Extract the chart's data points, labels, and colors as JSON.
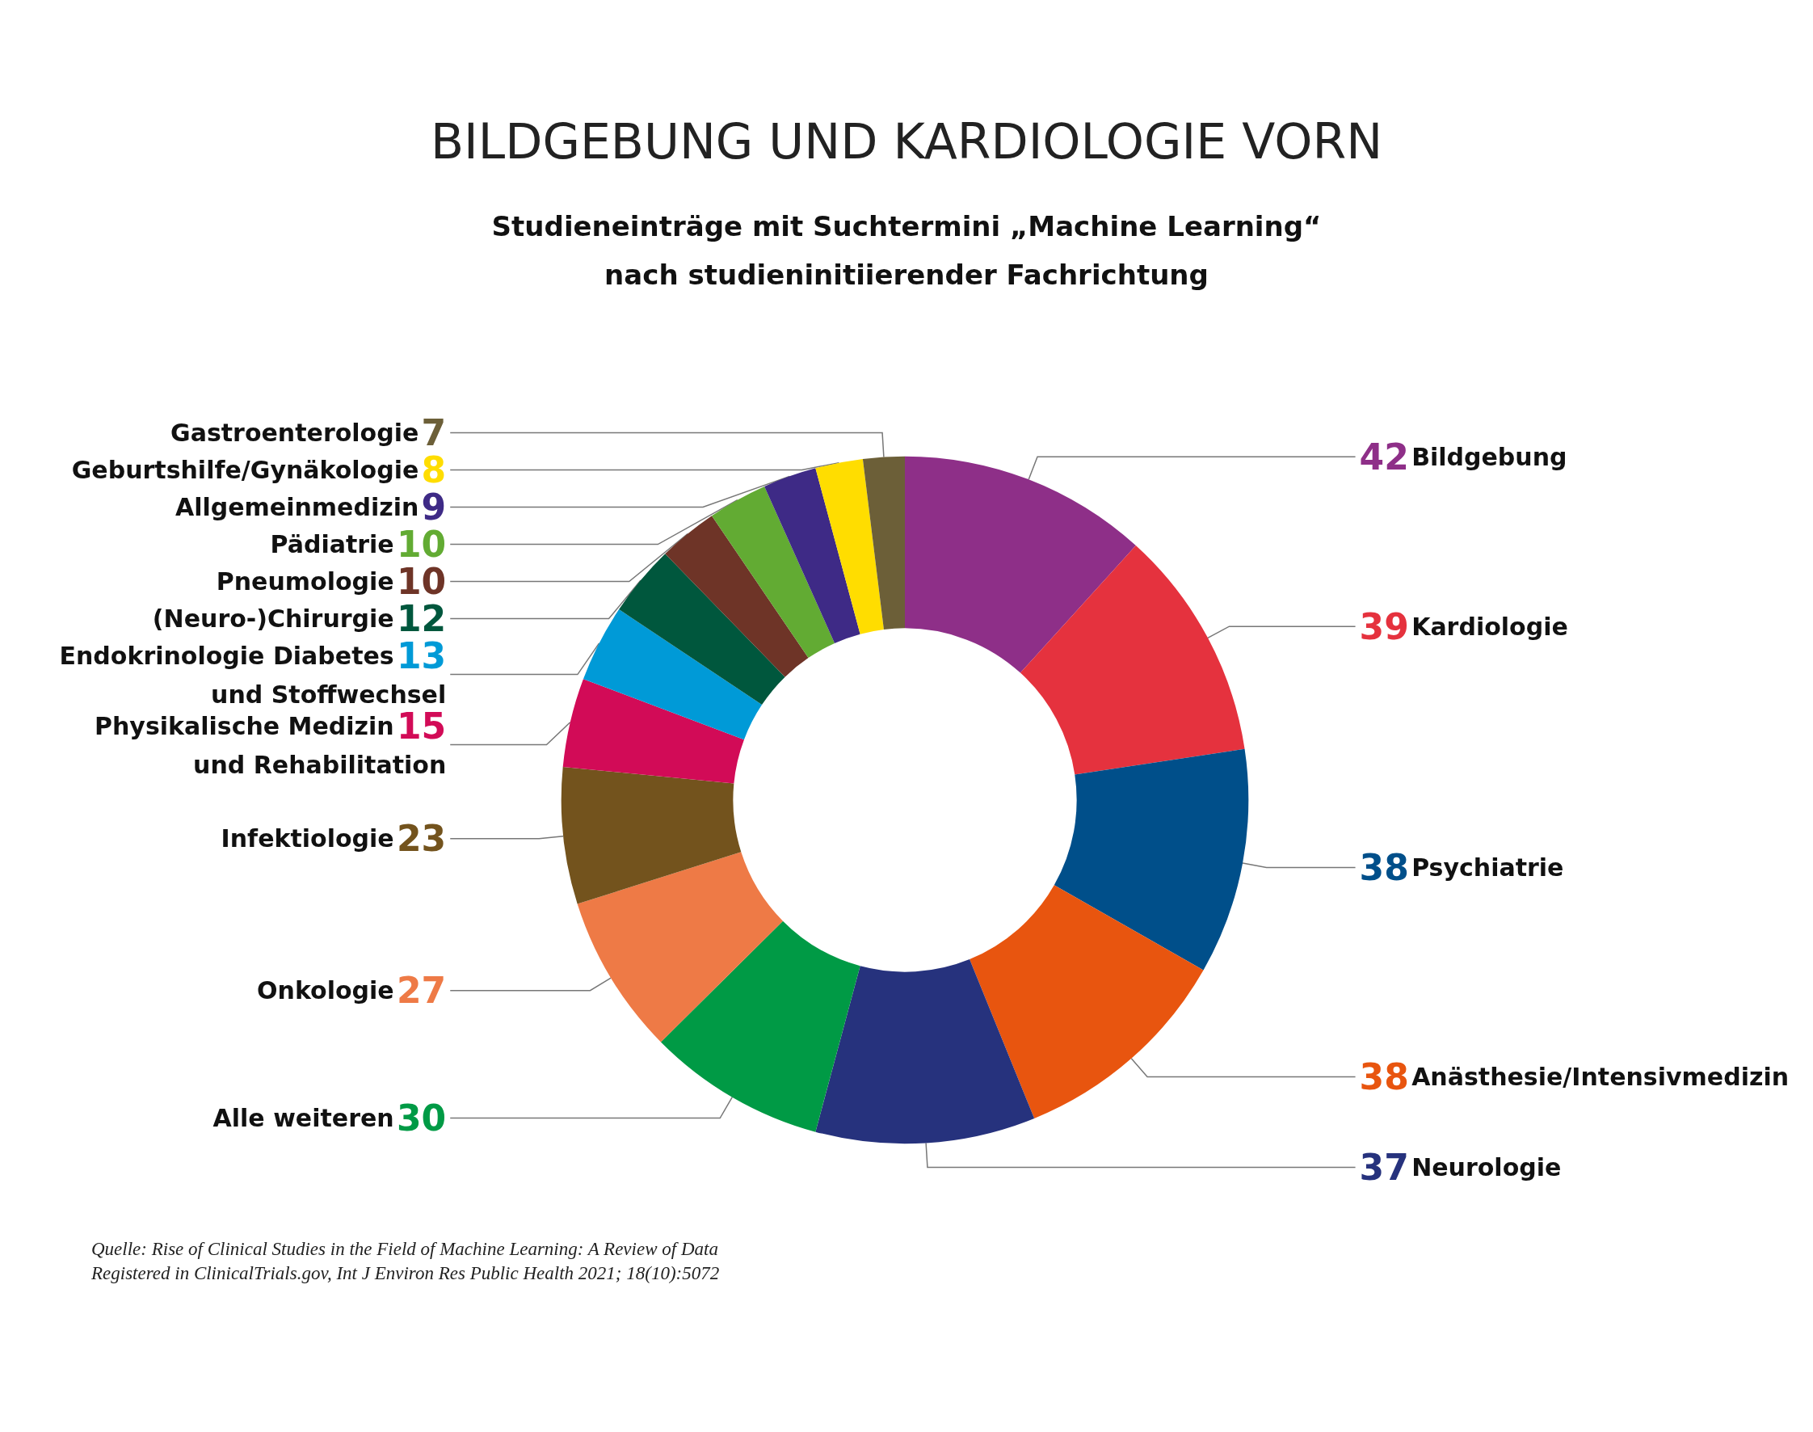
{
  "chart_data": {
    "type": "donut",
    "title": "BILDGEBUNG UND KARDIOLOGIE VORN",
    "subtitle": "Studieneinträge mit Suchtermini „Machine Learning“ nach studieninitiierender Fachrichtung",
    "categories": [
      "Bildgebung",
      "Kardiologie",
      "Psychiatrie",
      "Anästhesie/Intensivmedizin",
      "Neurologie",
      "Alle weiteren",
      "Onkologie",
      "Infektiologie",
      "Physikalische Medizin und Rehabilitation",
      "Endokrinologie Diabetes und Stoffwechsel",
      "(Neuro-)Chirurgie",
      "Pneumologie",
      "Pädiatrie",
      "Allgemeinmedizin",
      "Geburtshilfe/Gynäkologie",
      "Gastroenterologie"
    ],
    "values": [
      42,
      39,
      38,
      38,
      37,
      30,
      27,
      23,
      15,
      13,
      12,
      10,
      10,
      9,
      8,
      7
    ],
    "colors": [
      "#8e2f88",
      "#e5323e",
      "#004f8a",
      "#e8550f",
      "#26327d",
      "#009a45",
      "#ee7a46",
      "#73531d",
      "#d20b57",
      "#009ad7",
      "#00573d",
      "#6e3427",
      "#62ab33",
      "#3e2a86",
      "#ffdd00",
      "#6c5f38"
    ],
    "data_labels": true,
    "legend": false,
    "annotations": [
      "Quelle: Rise of Clinical Studies in the Field of Machine Learning: A Review of Data Registered in ClinicalTrials.gov, Int J Environ Res Public Health 2021; 18(10):5072"
    ]
  }
}
